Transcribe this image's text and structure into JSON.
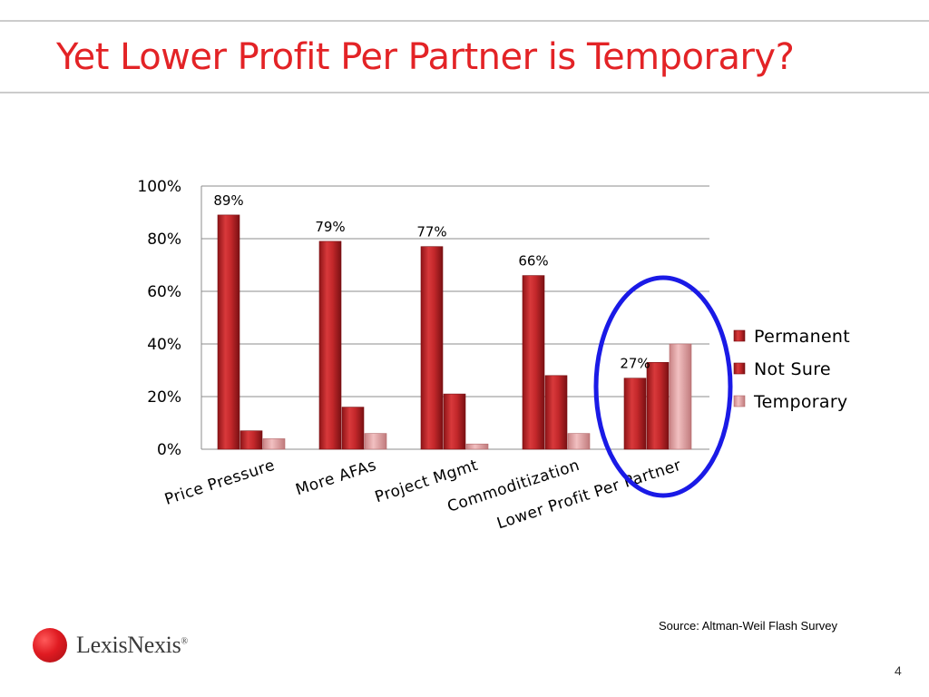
{
  "slide": {
    "title": "Yet Lower Profit Per Partner is Temporary?",
    "source": "Source:  Altman-Weil Flash Survey",
    "logo_text": "LexisNexis",
    "logo_mark": "®",
    "page_number": "4"
  },
  "colors": {
    "title": "#e32326",
    "permanent": "#c8282b",
    "not_sure": "#c8282b",
    "temporary": "#e8a3a5",
    "highlight_ellipse": "#1a1ae6"
  },
  "chart_data": {
    "type": "bar",
    "categories": [
      "Price Pressure",
      "More AFAs",
      "Project Mgmt",
      "Commoditization",
      "Lower Profit Per Partner"
    ],
    "series": [
      {
        "name": "Permanent",
        "values": [
          89,
          79,
          77,
          66,
          27
        ]
      },
      {
        "name": "Not Sure",
        "values": [
          7,
          16,
          21,
          28,
          33
        ]
      },
      {
        "name": "Temporary",
        "values": [
          4,
          6,
          2,
          6,
          40
        ]
      }
    ],
    "data_labels": [
      {
        "series": "Permanent",
        "category": "Price Pressure",
        "text": "89%"
      },
      {
        "series": "Permanent",
        "category": "More AFAs",
        "text": "79%"
      },
      {
        "series": "Permanent",
        "category": "Project Mgmt",
        "text": "77%"
      },
      {
        "series": "Permanent",
        "category": "Commoditization",
        "text": "66%"
      },
      {
        "series": "Permanent",
        "category": "Lower Profit Per Partner",
        "text": "27%"
      }
    ],
    "y_ticks": [
      "0%",
      "20%",
      "40%",
      "60%",
      "80%",
      "100%"
    ],
    "ylim": [
      0,
      100
    ],
    "grid": true,
    "legend_position": "right",
    "highlight": "ellipse around Lower Profit Per Partner"
  }
}
